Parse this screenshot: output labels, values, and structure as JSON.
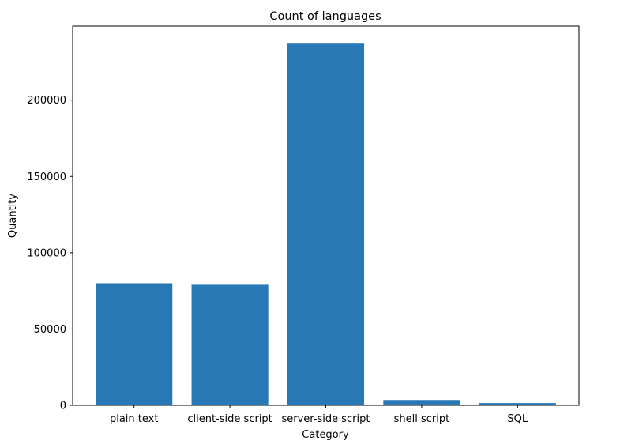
{
  "chart_data": {
    "type": "bar",
    "title": "Count of languages",
    "xlabel": "Category",
    "ylabel": "Quantity",
    "categories": [
      "plain text",
      "client-side script",
      "server-side script",
      "shell script",
      "SQL"
    ],
    "values": [
      80000,
      79000,
      237000,
      3500,
      1500
    ],
    "ylim": [
      0,
      248500
    ],
    "yticks": [
      0,
      50000,
      100000,
      150000,
      200000
    ],
    "bar_color": "#2878b5",
    "grid": false,
    "legend": "none"
  }
}
